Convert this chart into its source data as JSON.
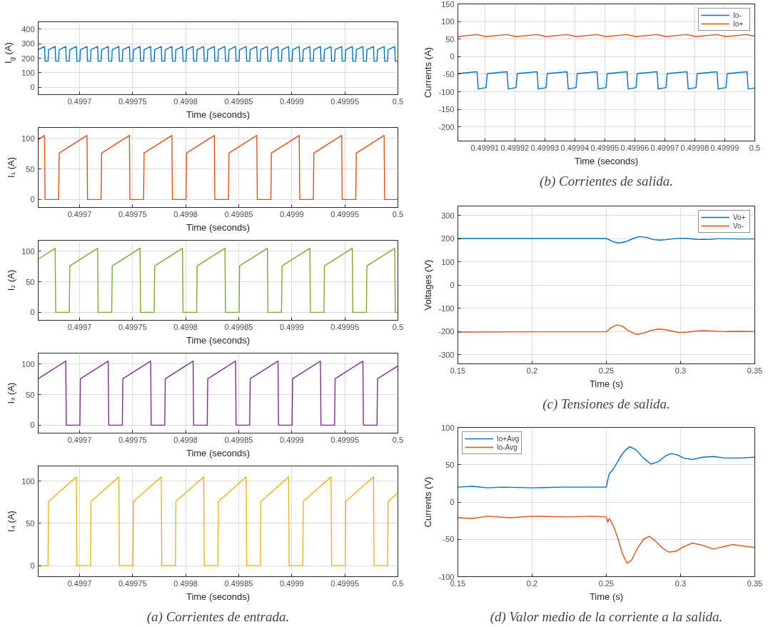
{
  "chart_data": [
    {
      "type": "line",
      "xlabel": "Time (seconds)",
      "ylabel": "I$_{g}$ (A)",
      "xlim": [
        0.499661,
        0.5
      ],
      "ylim": [
        -50,
        450
      ],
      "xticks": [
        0.4997,
        0.49975,
        0.4998,
        0.49985,
        0.4999,
        0.49995,
        0.5
      ],
      "yticks": [
        0,
        100,
        200,
        300,
        400
      ],
      "grid": true,
      "series": [
        {
          "color": "#0072bd",
          "x": [
            0.499661,
            0.499667,
            0.4996675,
            0.4996703,
            0.4996708,
            0.499677,
            0.4996775,
            0.4996803,
            0.4996808,
            0.499687,
            0.4996875,
            0.4996903,
            0.4996908,
            0.499697,
            0.4996975,
            0.4997003,
            0.4997008,
            0.499707,
            0.4997075,
            0.4997103,
            0.4997108,
            0.499717,
            0.4997175,
            0.4997203,
            0.4997208,
            0.499727,
            0.4997275,
            0.4997303,
            0.4997308,
            0.499737,
            0.4997375,
            0.4997403,
            0.4997408,
            0.499747,
            0.4997475,
            0.4997503,
            0.4997508,
            0.499757,
            0.4997575,
            0.4997603,
            0.4997608,
            0.499767,
            0.4997675,
            0.4997703,
            0.4997708,
            0.499777,
            0.4997775,
            0.4997803,
            0.4997808,
            0.499787,
            0.4997875,
            0.4997903,
            0.4997908,
            0.499797,
            0.4997975,
            0.4998003,
            0.4998008,
            0.499807,
            0.4998075,
            0.4998103,
            0.4998108,
            0.499817,
            0.4998175,
            0.4998203,
            0.4998208,
            0.499827,
            0.4998275,
            0.4998303,
            0.4998308,
            0.499837,
            0.4998375,
            0.4998403,
            0.4998408,
            0.499847,
            0.4998475,
            0.4998503,
            0.4998508,
            0.499857,
            0.4998575,
            0.4998603,
            0.4998608,
            0.499867,
            0.4998675,
            0.4998703,
            0.4998708,
            0.499877,
            0.4998775,
            0.4998803,
            0.4998808,
            0.499887,
            0.4998875,
            0.4998903,
            0.4998908,
            0.499897,
            0.4998975,
            0.4999003,
            0.4999008,
            0.499907,
            0.4999075,
            0.4999103,
            0.4999108,
            0.499917,
            0.4999175,
            0.4999203,
            0.4999208,
            0.499927,
            0.4999275,
            0.4999303,
            0.4999308,
            0.499937,
            0.4999375,
            0.4999403,
            0.4999408,
            0.499947,
            0.4999475,
            0.4999503,
            0.4999508,
            0.499957,
            0.4999575,
            0.4999603,
            0.4999608,
            0.499967,
            0.4999675,
            0.4999703,
            0.4999708,
            0.499977,
            0.4999775,
            0.4999803,
            0.4999808,
            0.499987,
            0.4999875,
            0.4999903,
            0.4999908,
            0.499997,
            0.4999975,
            0.5
          ],
          "values": [
            259,
            280,
            180,
            180,
            258,
            280,
            180,
            180,
            258,
            280,
            180,
            180,
            258,
            280,
            180,
            180,
            258,
            280,
            180,
            180,
            258,
            280,
            180,
            180,
            258,
            280,
            180,
            180,
            258,
            280,
            180,
            180,
            258,
            280,
            180,
            180,
            258,
            280,
            180,
            180,
            258,
            280,
            180,
            180,
            258,
            280,
            180,
            180,
            258,
            280,
            180,
            180,
            258,
            280,
            180,
            180,
            258,
            280,
            180,
            180,
            258,
            280,
            180,
            180,
            258,
            280,
            180,
            180,
            258,
            280,
            180,
            180,
            258,
            280,
            180,
            180,
            258,
            280,
            180,
            180,
            258,
            280,
            180,
            180,
            258,
            280,
            180,
            180,
            258,
            280,
            180,
            180,
            258,
            280,
            180,
            180,
            258,
            280,
            180,
            180,
            258,
            280,
            180,
            180,
            258,
            280,
            180,
            180,
            258,
            280,
            180,
            180,
            258,
            280,
            180,
            180,
            258,
            280,
            180,
            180,
            258,
            280,
            180,
            180,
            258,
            280,
            180,
            180,
            258,
            280,
            180,
            180,
            258,
            280,
            180,
            180
          ]
        }
      ]
    },
    {
      "type": "line",
      "xlabel": "Time (seconds)",
      "ylabel": "I₁ (A)",
      "xlim": [
        0.499661,
        0.5
      ],
      "ylim": [
        -13,
        118
      ],
      "xticks": [
        0.4997,
        0.49975,
        0.4998,
        0.49985,
        0.4999,
        0.49995,
        0.5
      ],
      "yticks": [
        0,
        50,
        100
      ],
      "grid": true,
      "series": [
        {
          "color": "#d95319",
          "x": [
            0.499661,
            0.499667,
            0.4996675,
            0.4996803,
            0.4996808,
            0.499707,
            0.4997075,
            0.4997203,
            0.4997208,
            0.499747,
            0.4997475,
            0.4997603,
            0.4997608,
            0.499787,
            0.4997875,
            0.4998003,
            0.4998008,
            0.499827,
            0.4998275,
            0.4998403,
            0.4998408,
            0.499867,
            0.4998675,
            0.4998803,
            0.4998808,
            0.499907,
            0.4999075,
            0.4999203,
            0.4999208,
            0.499947,
            0.4999475,
            0.4999603,
            0.4999608,
            0.499987,
            0.4999875,
            0.5
          ],
          "values": [
            98,
            105,
            0,
            0,
            76,
            105,
            0,
            0,
            76,
            105,
            0,
            0,
            76,
            105,
            0,
            0,
            76,
            105,
            0,
            0,
            76,
            105,
            0,
            0,
            76,
            105,
            0,
            0,
            76,
            105,
            0,
            0,
            76,
            105,
            0,
            0
          ]
        }
      ]
    },
    {
      "type": "line",
      "xlabel": "Time (seconds)",
      "ylabel": "I₂ (A)",
      "xlim": [
        0.499661,
        0.5
      ],
      "ylim": [
        -13,
        118
      ],
      "xticks": [
        0.4997,
        0.49975,
        0.4998,
        0.49985,
        0.4999,
        0.49995,
        0.5
      ],
      "yticks": [
        0,
        50,
        100
      ],
      "grid": true,
      "series": [
        {
          "color": "#77ac30",
          "x": [
            0.499661,
            0.499677,
            0.4996775,
            0.4996903,
            0.4996908,
            0.499717,
            0.4997175,
            0.4997303,
            0.4997308,
            0.499757,
            0.4997575,
            0.4997703,
            0.4997708,
            0.499797,
            0.4997975,
            0.4998103,
            0.4998108,
            0.499837,
            0.4998375,
            0.4998503,
            0.4998508,
            0.499877,
            0.4998775,
            0.4998903,
            0.4998908,
            0.499917,
            0.4999175,
            0.4999303,
            0.4999308,
            0.499957,
            0.4999575,
            0.4999703,
            0.4999708,
            0.499997,
            0.4999975,
            0.5
          ],
          "values": [
            87,
            105,
            0,
            0,
            76,
            105,
            0,
            0,
            76,
            105,
            0,
            0,
            76,
            105,
            0,
            0,
            76,
            105,
            0,
            0,
            76,
            105,
            0,
            0,
            76,
            105,
            0,
            0,
            76,
            105,
            0,
            0,
            76,
            105,
            0,
            0
          ]
        }
      ]
    },
    {
      "type": "line",
      "xlabel": "Time (seconds)",
      "ylabel": "I₃ (A)",
      "xlim": [
        0.499661,
        0.5
      ],
      "ylim": [
        -13,
        118
      ],
      "xticks": [
        0.4997,
        0.49975,
        0.4998,
        0.49985,
        0.4999,
        0.49995,
        0.5
      ],
      "yticks": [
        0,
        50,
        100
      ],
      "grid": true,
      "series": [
        {
          "color": "#7e2f8e",
          "x": [
            0.499661,
            0.499687,
            0.4996875,
            0.4997003,
            0.4997008,
            0.499727,
            0.4997275,
            0.4997403,
            0.4997408,
            0.499767,
            0.4997675,
            0.4997803,
            0.4997808,
            0.499807,
            0.4998075,
            0.4998203,
            0.4998208,
            0.499847,
            0.4998475,
            0.4998603,
            0.4998608,
            0.499887,
            0.4998875,
            0.4999003,
            0.4999008,
            0.499927,
            0.4999275,
            0.4999403,
            0.4999408,
            0.499967,
            0.4999675,
            0.4999803,
            0.4999808,
            0.5
          ],
          "values": [
            76,
            105,
            0,
            0,
            76,
            105,
            0,
            0,
            76,
            105,
            0,
            0,
            76,
            105,
            0,
            0,
            76,
            105,
            0,
            0,
            76,
            105,
            0,
            0,
            76,
            105,
            0,
            0,
            76,
            105,
            0,
            0,
            76,
            97
          ]
        }
      ]
    },
    {
      "type": "line",
      "xlabel": "Time (seconds)",
      "ylabel": "I₄ (A)",
      "xlim": [
        0.499661,
        0.5
      ],
      "ylim": [
        -13,
        118
      ],
      "xticks": [
        0.4997,
        0.49975,
        0.4998,
        0.49985,
        0.4999,
        0.49995,
        0.5
      ],
      "yticks": [
        0,
        50,
        100
      ],
      "grid": true,
      "annotations": [
        "(a) Corrientes de entrada."
      ],
      "series": [
        {
          "color": "#edb120",
          "x": [
            0.499661,
            0.4996703,
            0.4996708,
            0.499697,
            0.4996975,
            0.4997103,
            0.4997108,
            0.499737,
            0.4997375,
            0.4997503,
            0.4997508,
            0.499777,
            0.4997775,
            0.4997903,
            0.4997908,
            0.499817,
            0.4998175,
            0.4998303,
            0.4998308,
            0.499857,
            0.4998575,
            0.4998703,
            0.4998708,
            0.499897,
            0.4998975,
            0.4999103,
            0.4999108,
            0.499937,
            0.4999375,
            0.4999503,
            0.4999508,
            0.499977,
            0.4999775,
            0.4999903,
            0.4999908,
            0.5
          ],
          "values": [
            0,
            0,
            76,
            105,
            0,
            0,
            76,
            105,
            0,
            0,
            76,
            105,
            0,
            0,
            76,
            105,
            0,
            0,
            76,
            105,
            0,
            0,
            76,
            105,
            0,
            0,
            76,
            105,
            0,
            0,
            76,
            105,
            0,
            0,
            76,
            86
          ]
        }
      ]
    },
    {
      "type": "line",
      "xlabel": "Time (seconds)",
      "ylabel": "Currents (A)",
      "xlim": [
        0.499901,
        0.5
      ],
      "ylim": [
        -240,
        150
      ],
      "xticks": [
        0.49991,
        0.49992,
        0.49993,
        0.49994,
        0.49995,
        0.49996,
        0.49997,
        0.49998,
        0.49999,
        0.5
      ],
      "yticks": [
        -200,
        -150,
        -100,
        -50,
        0,
        50,
        100,
        150
      ],
      "grid": true,
      "legend": "top right",
      "annotations": [
        "(b) Corrientes de salida."
      ],
      "series": [
        {
          "name": "Io-",
          "color": "#0072bd",
          "x": [
            0.499901,
            0.4999074,
            0.4999078,
            0.4999104,
            0.4999108,
            0.4999174,
            0.4999178,
            0.4999204,
            0.4999208,
            0.4999274,
            0.4999278,
            0.4999304,
            0.4999308,
            0.4999374,
            0.4999378,
            0.4999404,
            0.4999408,
            0.4999474,
            0.4999478,
            0.4999504,
            0.4999508,
            0.4999574,
            0.4999578,
            0.4999604,
            0.4999608,
            0.4999674,
            0.4999678,
            0.4999704,
            0.4999708,
            0.4999774,
            0.4999778,
            0.4999804,
            0.4999808,
            0.4999874,
            0.4999878,
            0.4999904,
            0.4999908,
            0.4999974,
            0.4999978,
            0.5
          ],
          "values": [
            -48,
            -43,
            -92,
            -88,
            -48,
            -43,
            -92,
            -88,
            -48,
            -43,
            -92,
            -88,
            -48,
            -43,
            -92,
            -88,
            -48,
            -43,
            -92,
            -88,
            -48,
            -43,
            -92,
            -88,
            -48,
            -43,
            -92,
            -88,
            -48,
            -43,
            -92,
            -88,
            -48,
            -43,
            -92,
            -88,
            -48,
            -43,
            -92,
            -89
          ]
        },
        {
          "name": "Io+",
          "color": "#d95319",
          "x": [
            0.499901,
            0.4999074,
            0.4999104,
            0.4999174,
            0.4999204,
            0.4999274,
            0.4999304,
            0.4999374,
            0.4999404,
            0.4999474,
            0.4999504,
            0.4999574,
            0.4999604,
            0.4999674,
            0.4999704,
            0.4999774,
            0.4999804,
            0.4999874,
            0.4999904,
            0.4999974,
            0.5
          ],
          "values": [
            57,
            63,
            57,
            63,
            57,
            63,
            57,
            63,
            57,
            63,
            57,
            63,
            57,
            63,
            57,
            63,
            57,
            63,
            57,
            63,
            58
          ]
        }
      ]
    },
    {
      "type": "line",
      "xlabel": "Time (s)",
      "ylabel": "Voltages (V)",
      "xlim": [
        0.15,
        0.35
      ],
      "ylim": [
        -340,
        340
      ],
      "xticks": [
        0.15,
        0.2,
        0.25,
        0.3,
        0.35
      ],
      "yticks": [
        -300,
        -200,
        -100,
        0,
        100,
        200,
        300
      ],
      "grid": true,
      "legend": "top right",
      "annotations": [
        "(c) Tensiones de salida."
      ],
      "series": [
        {
          "name": "Vo+",
          "color": "#0072bd",
          "x": [
            0.15,
            0.2,
            0.25,
            0.254,
            0.258,
            0.263,
            0.268,
            0.272,
            0.277,
            0.282,
            0.286,
            0.29,
            0.295,
            0.3,
            0.305,
            0.31,
            0.315,
            0.32,
            0.325,
            0.33,
            0.34,
            0.35
          ],
          "values": [
            200,
            200,
            200,
            188,
            180,
            186,
            200,
            208,
            205,
            195,
            193,
            195,
            199,
            201,
            200,
            197,
            196,
            197,
            199,
            199,
            198,
            198
          ]
        },
        {
          "name": "Vo-",
          "color": "#d95319",
          "x": [
            0.15,
            0.2,
            0.25,
            0.253,
            0.257,
            0.261,
            0.265,
            0.27,
            0.275,
            0.28,
            0.285,
            0.29,
            0.295,
            0.299,
            0.305,
            0.31,
            0.315,
            0.32,
            0.33,
            0.34,
            0.35
          ],
          "values": [
            -203,
            -202,
            -202,
            -185,
            -172,
            -178,
            -198,
            -213,
            -208,
            -196,
            -190,
            -193,
            -200,
            -205,
            -203,
            -199,
            -197,
            -198,
            -201,
            -200,
            -201
          ]
        }
      ]
    },
    {
      "type": "line",
      "xlabel": "Time (s)",
      "ylabel": "Currents (V)",
      "xlim": [
        0.15,
        0.35
      ],
      "ylim": [
        -100,
        100
      ],
      "xticks": [
        0.15,
        0.2,
        0.25,
        0.3,
        0.35
      ],
      "yticks": [
        -100,
        -50,
        0,
        50,
        100
      ],
      "grid": true,
      "legend": "top left",
      "annotations": [
        "(d) Valor medio de la corriente a la salida."
      ],
      "series": [
        {
          "name": "Io+Avg",
          "color": "#0072bd",
          "x": [
            0.15,
            0.16,
            0.17,
            0.18,
            0.2,
            0.22,
            0.24,
            0.25,
            0.251,
            0.252,
            0.254,
            0.257,
            0.26,
            0.263,
            0.266,
            0.27,
            0.275,
            0.28,
            0.285,
            0.29,
            0.294,
            0.298,
            0.302,
            0.308,
            0.315,
            0.322,
            0.33,
            0.34,
            0.35
          ],
          "values": [
            20,
            21,
            19,
            20,
            19,
            20,
            20,
            20,
            30,
            38,
            42,
            52,
            62,
            70,
            74,
            70,
            59,
            51,
            54,
            62,
            65,
            63,
            59,
            57,
            60,
            61,
            59,
            59,
            60
          ]
        },
        {
          "name": "Io-Avg",
          "color": "#d95319",
          "x": [
            0.15,
            0.16,
            0.17,
            0.185,
            0.2,
            0.225,
            0.24,
            0.25,
            0.251,
            0.252,
            0.255,
            0.258,
            0.261,
            0.264,
            0.267,
            0.271,
            0.275,
            0.279,
            0.283,
            0.288,
            0.292,
            0.297,
            0.302,
            0.308,
            0.315,
            0.322,
            0.335,
            0.35
          ],
          "values": [
            -21,
            -22,
            -19,
            -21,
            -19,
            -20,
            -19,
            -20,
            -27,
            -22,
            -33,
            -50,
            -70,
            -82,
            -78,
            -62,
            -50,
            -46,
            -52,
            -62,
            -67,
            -66,
            -60,
            -55,
            -58,
            -63,
            -57,
            -61
          ]
        }
      ]
    }
  ]
}
